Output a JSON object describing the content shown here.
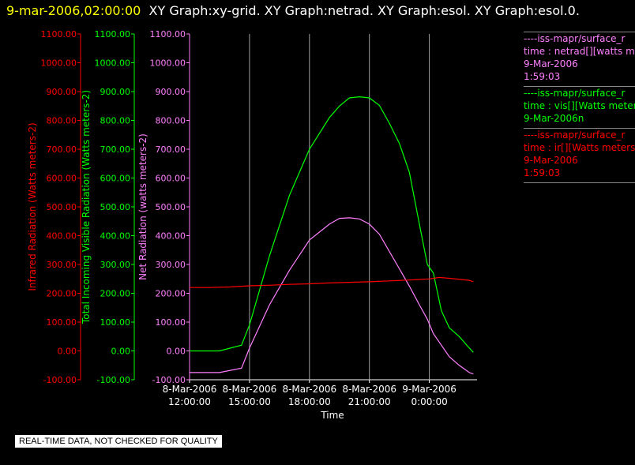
{
  "header": {
    "timestamp": "9-mar-2006,02:00:00",
    "graphs": "XY Graph:xy-grid.  XY Graph:netrad.  XY Graph:esol.  XY Graph:esol.0."
  },
  "notice": "REAL-TIME DATA, NOT CHECKED FOR QUALITY",
  "legend": [
    {
      "color": "#ff80ff",
      "lines": [
        "----iss-mapr/surface_r",
        "time : netrad[][watts me",
        "9-Mar-2006",
        "1:59:03"
      ]
    },
    {
      "color": "#00ff00",
      "lines": [
        "----iss-mapr/surface_r",
        "time : vis[][Watts meter",
        "9-Mar-2006n"
      ]
    },
    {
      "color": "#ff0000",
      "lines": [
        "----iss-mapr/surface_r",
        "time : ir[][Watts meters",
        "9-Mar-2006",
        "1:59:03"
      ]
    }
  ],
  "chart_data": {
    "type": "line",
    "xlabel": "Time",
    "x_tick_labels": [
      [
        "8-Mar-2006",
        "12:00:00"
      ],
      [
        "8-Mar-2006",
        "15:00:00"
      ],
      [
        "8-Mar-2006",
        "18:00:00"
      ],
      [
        "8-Mar-2006",
        "21:00:00"
      ],
      [
        "9-Mar-2006",
        "0:00:00"
      ]
    ],
    "x_ticks_hours": [
      0,
      3,
      6,
      9,
      12
    ],
    "xlim_hours": [
      0,
      14.3
    ],
    "ylim": [
      -100,
      1100
    ],
    "y_tick_labels": [
      "1100.00",
      "1000.00",
      "900.00",
      "800.00",
      "700.00",
      "600.00",
      "500.00",
      "400.00",
      "300.00",
      "200.00",
      "100.00",
      "0.00",
      "-100.00"
    ],
    "y_axes": [
      {
        "label": "Infrared Radiation (Watts meters-2)",
        "color": "#ff0000"
      },
      {
        "label": "Total Incoming Visible Radiation (Watts meters-2)",
        "color": "#00ff00"
      },
      {
        "label": "Net Radiation (watts meters-2)",
        "color": "#ff80ff"
      }
    ],
    "grid": "vertical",
    "series": [
      {
        "name": "vis",
        "color": "#00ff00",
        "x": [
          0,
          1.5,
          2.6,
          3.0,
          4,
          5,
          6,
          7,
          7.5,
          8,
          8.5,
          9,
          9.5,
          10,
          10.5,
          11,
          11.5,
          11.9,
          12.2,
          12.6,
          13,
          13.5,
          14,
          14.2
        ],
        "y": [
          0,
          0,
          20,
          90,
          330,
          540,
          700,
          810,
          850,
          878,
          882,
          878,
          852,
          790,
          720,
          620,
          440,
          300,
          270,
          140,
          80,
          50,
          10,
          -5
        ]
      },
      {
        "name": "netrad",
        "color": "#ff80ff",
        "x": [
          0,
          1.5,
          2.6,
          3.0,
          4,
          5,
          6,
          7,
          7.5,
          8,
          8.5,
          9,
          9.5,
          10,
          10.5,
          11,
          11.5,
          11.9,
          12.2,
          12.6,
          13,
          13.5,
          14,
          14.2
        ],
        "y": [
          -75,
          -75,
          -60,
          10,
          160,
          280,
          385,
          440,
          460,
          462,
          458,
          440,
          405,
          345,
          285,
          225,
          160,
          110,
          60,
          20,
          -20,
          -50,
          -75,
          -80
        ]
      },
      {
        "name": "ir",
        "color": "#ff0000",
        "x": [
          0,
          1,
          2,
          3,
          4,
          5,
          6,
          7,
          8,
          9,
          10,
          11,
          11.5,
          12,
          12.5,
          13,
          14,
          14.2
        ],
        "y": [
          220,
          220,
          222,
          226,
          228,
          231,
          233,
          236,
          238,
          240,
          243,
          246,
          248,
          250,
          255,
          252,
          245,
          240
        ]
      }
    ]
  }
}
